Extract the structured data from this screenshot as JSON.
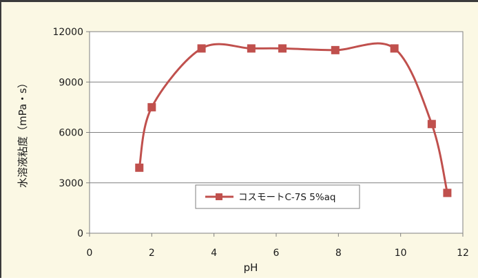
{
  "chart_data": {
    "type": "line",
    "xlabel": "pH",
    "ylabel": "水溶液粘度（mPa・s）",
    "xlim": [
      0,
      12
    ],
    "ylim": [
      0,
      12000
    ],
    "x_ticks": [
      "0",
      "2",
      "4",
      "6",
      "8",
      "10",
      "12"
    ],
    "y_ticks": [
      "0",
      "3000",
      "6000",
      "9000",
      "12000"
    ],
    "grid": "horizontal",
    "legend_position": "center-bottom",
    "colors": {
      "series": "#c0504d",
      "frame_bg": "#fbf8e4",
      "plot_bg": "#ffffff",
      "grid": "#7f7f7f"
    },
    "series": [
      {
        "name": "コスモートC-7S 5%aq",
        "marker": "square",
        "smooth": true,
        "x": [
          1.6,
          2.0,
          3.6,
          5.2,
          6.2,
          7.9,
          9.8,
          11.0,
          11.5
        ],
        "y": [
          3900,
          7500,
          11000,
          11000,
          11000,
          10900,
          11000,
          6500,
          2400
        ]
      }
    ]
  }
}
